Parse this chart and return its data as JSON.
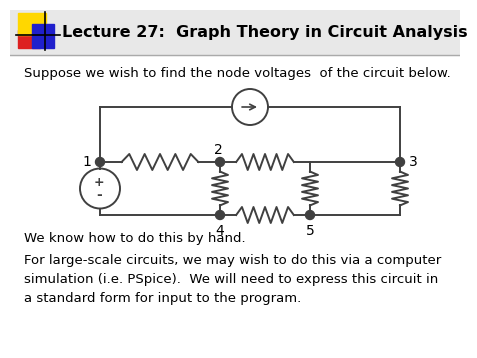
{
  "title": "Lecture 27:  Graph Theory in Circuit Analysis",
  "text1": "Suppose we wish to find the node voltages  of the circuit below.",
  "text2": "We know how to do this by hand.",
  "text3": "For large-scale circuits, we may wish to do this via a computer\nsimulation (i.e. PSpice).  We will need to express this circuit in\na standard form for input to the program.",
  "bg_color": "#ffffff",
  "header_bg": "#f0f0f0",
  "header_line_color": "#aaaaaa",
  "title_color": "#000000",
  "body_text_color": "#000000",
  "circuit_color": "#404040",
  "font_size_title": 11.5,
  "font_size_body": 9.5,
  "logo_yellow": "#FFD700",
  "logo_red": "#DD2020",
  "logo_blue": "#2020CC"
}
